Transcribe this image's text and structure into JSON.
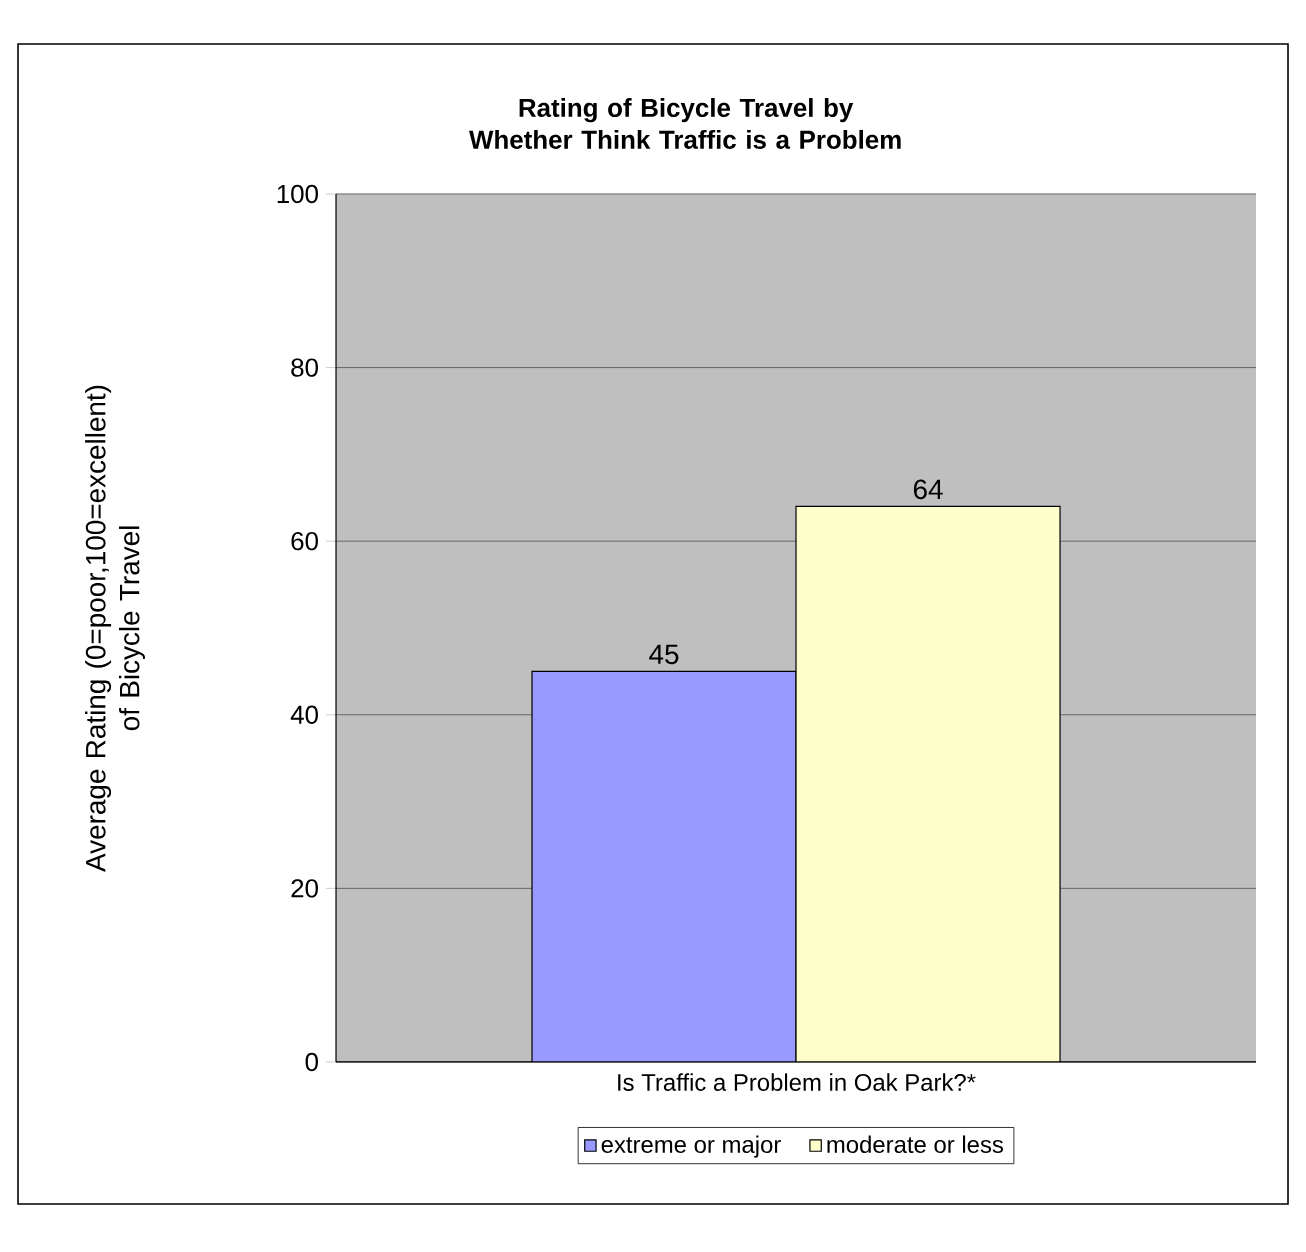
{
  "chart_data": {
    "type": "bar",
    "title": "Rating of Bicycle Travel by Whether Think Traffic is a Problem",
    "xlabel": "Is Traffic a Problem in Oak Park?*",
    "ylabel": "Average Rating (0=poor,100=excellent) of Bicycle Travel",
    "categories": [
      null
    ],
    "series": [
      {
        "name": "extreme or major",
        "color": "#9999ff",
        "values": [
          45
        ]
      },
      {
        "name": "moderate or less",
        "color": "#ffffcc",
        "values": [
          64
        ]
      }
    ],
    "ylim": [
      0,
      100
    ],
    "yticks": [
      0,
      20,
      40,
      60,
      80,
      100
    ],
    "grid": "y",
    "legend": "bottom",
    "data_labels": true
  }
}
